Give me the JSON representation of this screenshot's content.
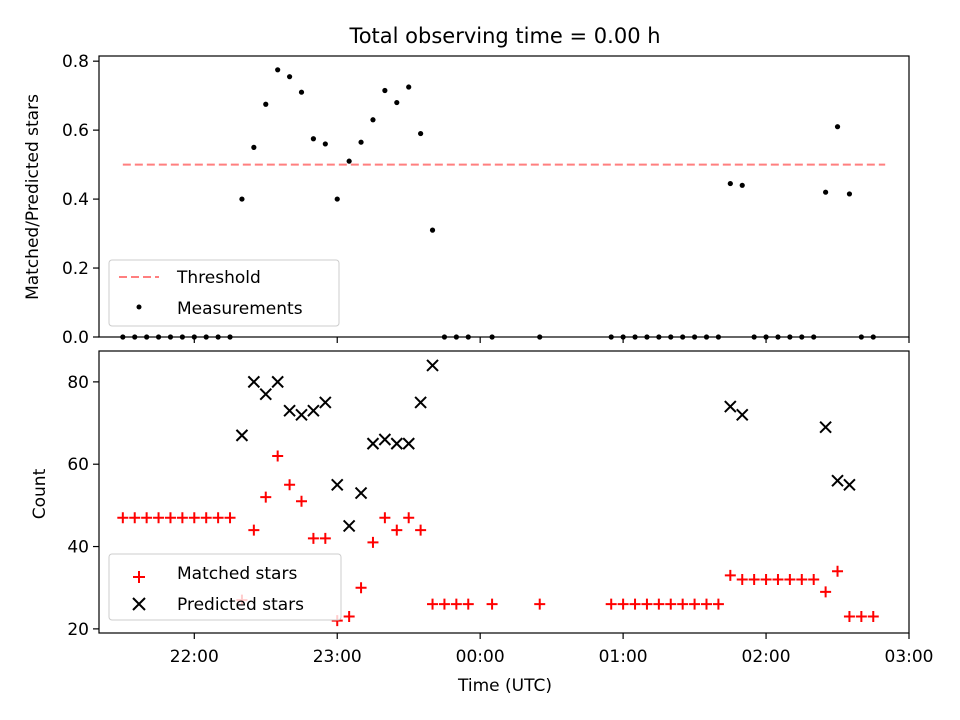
{
  "chart_data": [
    {
      "type": "scatter",
      "title": "Total observing time = 0.00 h",
      "xlabel": "",
      "ylabel": "Matched/Predicted stars",
      "ylim": [
        0,
        0.815
      ],
      "yticks": [
        0,
        0.2,
        0.4,
        0.6,
        0.8
      ],
      "ytick_labels": [
        "0.0",
        "0.2",
        "0.4",
        "0.6",
        "0.8"
      ],
      "xticks_shown": false,
      "legend": {
        "placement": "lower-left",
        "entries": [
          "Threshold",
          "Measurements"
        ]
      },
      "threshold": {
        "name": "Threshold",
        "value": 0.5,
        "x_range": [
          "21:30",
          "02:50"
        ],
        "color": "#ff7f7f"
      },
      "series": [
        {
          "name": "Measurements",
          "color": "#000000",
          "points": [
            [
              "21:30",
              0
            ],
            [
              "21:35",
              0
            ],
            [
              "21:40",
              0
            ],
            [
              "21:45",
              0
            ],
            [
              "21:50",
              0
            ],
            [
              "21:55",
              0
            ],
            [
              "22:00",
              0
            ],
            [
              "22:05",
              0
            ],
            [
              "22:10",
              0
            ],
            [
              "22:15",
              0
            ],
            [
              "22:20",
              0.4
            ],
            [
              "22:25",
              0.55
            ],
            [
              "22:30",
              0.675
            ],
            [
              "22:35",
              0.775
            ],
            [
              "22:40",
              0.755
            ],
            [
              "22:45",
              0.71
            ],
            [
              "22:50",
              0.575
            ],
            [
              "22:55",
              0.56
            ],
            [
              "23:00",
              0.4
            ],
            [
              "23:05",
              0.51
            ],
            [
              "23:10",
              0.565
            ],
            [
              "23:15",
              0.63
            ],
            [
              "23:20",
              0.715
            ],
            [
              "23:25",
              0.68
            ],
            [
              "23:30",
              0.725
            ],
            [
              "23:35",
              0.59
            ],
            [
              "23:40",
              0.31
            ],
            [
              "23:45",
              0
            ],
            [
              "23:50",
              0
            ],
            [
              "23:55",
              0
            ],
            [
              "00:05",
              0
            ],
            [
              "00:25",
              0
            ],
            [
              "00:55",
              0
            ],
            [
              "01:00",
              0
            ],
            [
              "01:05",
              0
            ],
            [
              "01:10",
              0
            ],
            [
              "01:15",
              0
            ],
            [
              "01:20",
              0
            ],
            [
              "01:25",
              0
            ],
            [
              "01:30",
              0
            ],
            [
              "01:35",
              0
            ],
            [
              "01:40",
              0
            ],
            [
              "01:45",
              0.445
            ],
            [
              "01:50",
              0.44
            ],
            [
              "01:55",
              0
            ],
            [
              "02:00",
              0
            ],
            [
              "02:05",
              0
            ],
            [
              "02:10",
              0
            ],
            [
              "02:15",
              0
            ],
            [
              "02:20",
              0
            ],
            [
              "02:25",
              0.42
            ],
            [
              "02:30",
              0.61
            ],
            [
              "02:35",
              0.415
            ],
            [
              "02:40",
              0
            ],
            [
              "02:45",
              0
            ]
          ]
        }
      ]
    },
    {
      "type": "scatter",
      "title": "",
      "xlabel": "Time (UTC)",
      "ylabel": "Count",
      "ylim": [
        19,
        87.5
      ],
      "yticks": [
        20,
        40,
        60,
        80
      ],
      "ytick_labels": [
        "20",
        "40",
        "60",
        "80"
      ],
      "xlim": [
        "21:20",
        "03:00"
      ],
      "xticks": [
        "22:00",
        "23:00",
        "00:00",
        "01:00",
        "02:00",
        "03:00"
      ],
      "legend": {
        "placement": "lower-left",
        "entries": [
          "Matched stars",
          "Predicted stars"
        ]
      },
      "series": [
        {
          "name": "Matched stars",
          "marker": "plus",
          "color": "#ff0000",
          "points": [
            [
              "21:30",
              47
            ],
            [
              "21:35",
              47
            ],
            [
              "21:40",
              47
            ],
            [
              "21:45",
              47
            ],
            [
              "21:50",
              47
            ],
            [
              "21:55",
              47
            ],
            [
              "22:00",
              47
            ],
            [
              "22:05",
              47
            ],
            [
              "22:10",
              47
            ],
            [
              "22:15",
              47
            ],
            [
              "22:20",
              27
            ],
            [
              "22:25",
              44
            ],
            [
              "22:30",
              52
            ],
            [
              "22:35",
              62
            ],
            [
              "22:40",
              55
            ],
            [
              "22:45",
              51
            ],
            [
              "22:50",
              42
            ],
            [
              "22:55",
              42
            ],
            [
              "23:00",
              22
            ],
            [
              "23:05",
              23
            ],
            [
              "23:10",
              30
            ],
            [
              "23:15",
              41
            ],
            [
              "23:20",
              47
            ],
            [
              "23:25",
              44
            ],
            [
              "23:30",
              47
            ],
            [
              "23:35",
              44
            ],
            [
              "23:40",
              26
            ],
            [
              "23:45",
              26
            ],
            [
              "23:50",
              26
            ],
            [
              "23:55",
              26
            ],
            [
              "00:05",
              26
            ],
            [
              "00:25",
              26
            ],
            [
              "00:55",
              26
            ],
            [
              "01:00",
              26
            ],
            [
              "01:05",
              26
            ],
            [
              "01:10",
              26
            ],
            [
              "01:15",
              26
            ],
            [
              "01:20",
              26
            ],
            [
              "01:25",
              26
            ],
            [
              "01:30",
              26
            ],
            [
              "01:35",
              26
            ],
            [
              "01:40",
              26
            ],
            [
              "01:45",
              33
            ],
            [
              "01:50",
              32
            ],
            [
              "01:55",
              32
            ],
            [
              "02:00",
              32
            ],
            [
              "02:05",
              32
            ],
            [
              "02:10",
              32
            ],
            [
              "02:15",
              32
            ],
            [
              "02:20",
              32
            ],
            [
              "02:25",
              29
            ],
            [
              "02:30",
              34
            ],
            [
              "02:35",
              23
            ],
            [
              "02:40",
              23
            ],
            [
              "02:45",
              23
            ]
          ]
        },
        {
          "name": "Predicted stars",
          "marker": "x",
          "color": "#000000",
          "points": [
            [
              "22:20",
              67
            ],
            [
              "22:25",
              80
            ],
            [
              "22:30",
              77
            ],
            [
              "22:35",
              80
            ],
            [
              "22:40",
              73
            ],
            [
              "22:45",
              72
            ],
            [
              "22:50",
              73
            ],
            [
              "22:55",
              75
            ],
            [
              "23:00",
              55
            ],
            [
              "23:05",
              45
            ],
            [
              "23:10",
              53
            ],
            [
              "23:15",
              65
            ],
            [
              "23:20",
              66
            ],
            [
              "23:25",
              65
            ],
            [
              "23:30",
              65
            ],
            [
              "23:35",
              75
            ],
            [
              "23:40",
              84
            ],
            [
              "01:45",
              74
            ],
            [
              "01:50",
              72
            ],
            [
              "02:25",
              69
            ],
            [
              "02:30",
              56
            ],
            [
              "02:35",
              55
            ]
          ]
        }
      ]
    }
  ]
}
